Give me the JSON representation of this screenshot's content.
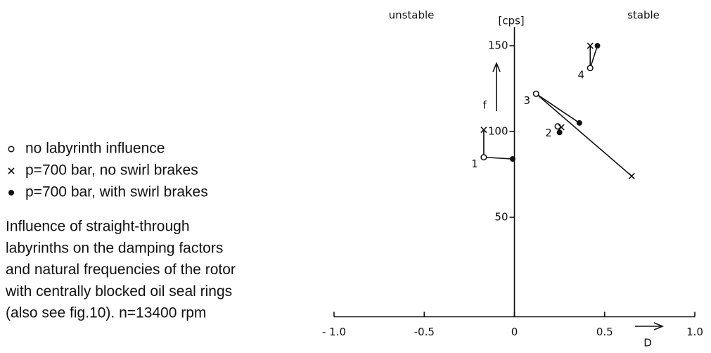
{
  "chart_data": {
    "type": "scatter",
    "labels": {
      "left": "unstable",
      "right": "stable",
      "yunit": "[cps]",
      "ylabel": "f",
      "xlabel": "D"
    },
    "caption": [
      "Influence of straight-through",
      "labyrinths on the damping factors",
      "and natural frequencies of the rotor",
      "with centrally blocked oil seal rings",
      "(also see fig.10). n=13400 rpm"
    ],
    "groups": [
      "1",
      "2",
      "3",
      "4"
    ],
    "series": [
      {
        "name": "no labyrinth influence",
        "marker": "o",
        "color": "#111111",
        "x": [
          -0.17,
          0.24,
          0.12,
          0.42
        ],
        "values": [
          85,
          103,
          122,
          137
        ]
      },
      {
        "name": "p=700 bar, no swirl brakes",
        "marker": "x",
        "color": "#111111",
        "x": [
          -0.17,
          0.26,
          0.65,
          0.42
        ],
        "values": [
          101,
          102.5,
          74,
          150
        ]
      },
      {
        "name": "p=700 bar, with swirl brakes",
        "marker": "dot",
        "color": "#111111",
        "x": [
          -0.01,
          0.25,
          0.36,
          0.46
        ],
        "values": [
          84,
          99.5,
          105,
          150
        ]
      }
    ],
    "xlim": [
      -1,
      1
    ],
    "ylim": [
      -8,
      161
    ],
    "xticks": [
      {
        "value": -1,
        "label": "- 1.0"
      },
      -0.5,
      0,
      0.5,
      {
        "value": 1,
        "label": "1.0"
      }
    ],
    "yticks": [
      50,
      100,
      150
    ]
  }
}
